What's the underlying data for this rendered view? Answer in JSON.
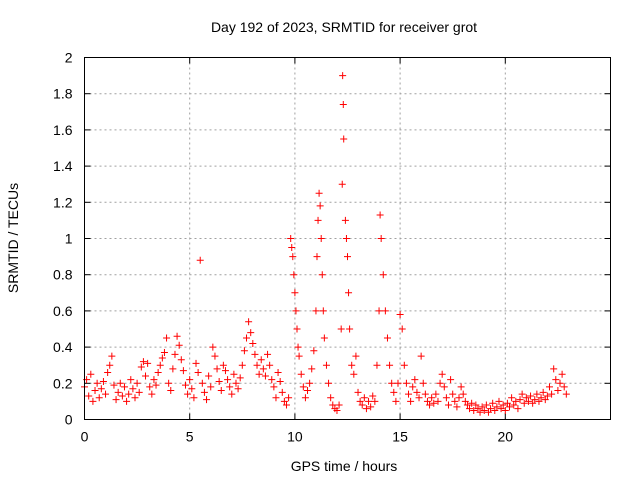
{
  "chart_data": {
    "type": "scatter",
    "title": "Day 192 of 2023, SRMTID for receiver grot",
    "xlabel": "GPS time / hours",
    "ylabel": "SRMTID / TECUs",
    "xlim": [
      0,
      25
    ],
    "ylim": [
      0,
      2
    ],
    "xticks": [
      0,
      5,
      10,
      15,
      20
    ],
    "yticks": [
      0,
      0.2,
      0.4,
      0.6,
      0.8,
      1,
      1.2,
      1.4,
      1.6,
      1.8,
      2
    ],
    "grid": true,
    "marker": "+",
    "series": [
      {
        "name": "SRMTID",
        "color": "#ff0000",
        "points": [
          [
            0.0,
            0.18
          ],
          [
            0.1,
            0.22
          ],
          [
            0.2,
            0.13
          ],
          [
            0.3,
            0.25
          ],
          [
            0.4,
            0.1
          ],
          [
            0.5,
            0.16
          ],
          [
            0.6,
            0.2
          ],
          [
            0.7,
            0.12
          ],
          [
            0.8,
            0.17
          ],
          [
            0.9,
            0.21
          ],
          [
            1.0,
            0.14
          ],
          [
            1.1,
            0.26
          ],
          [
            1.2,
            0.3
          ],
          [
            1.3,
            0.35
          ],
          [
            1.4,
            0.19
          ],
          [
            1.5,
            0.11
          ],
          [
            1.6,
            0.15
          ],
          [
            1.7,
            0.2
          ],
          [
            1.8,
            0.13
          ],
          [
            1.9,
            0.18
          ],
          [
            2.0,
            0.1
          ],
          [
            2.1,
            0.14
          ],
          [
            2.2,
            0.22
          ],
          [
            2.3,
            0.17
          ],
          [
            2.4,
            0.12
          ],
          [
            2.5,
            0.2
          ],
          [
            2.6,
            0.15
          ],
          [
            2.7,
            0.29
          ],
          [
            2.8,
            0.32
          ],
          [
            2.9,
            0.24
          ],
          [
            3.0,
            0.31
          ],
          [
            3.1,
            0.18
          ],
          [
            3.2,
            0.14
          ],
          [
            3.3,
            0.22
          ],
          [
            3.4,
            0.19
          ],
          [
            3.5,
            0.26
          ],
          [
            3.6,
            0.3
          ],
          [
            3.7,
            0.34
          ],
          [
            3.8,
            0.37
          ],
          [
            3.9,
            0.45
          ],
          [
            4.0,
            0.2
          ],
          [
            4.1,
            0.16
          ],
          [
            4.2,
            0.28
          ],
          [
            4.3,
            0.36
          ],
          [
            4.4,
            0.46
          ],
          [
            4.5,
            0.41
          ],
          [
            4.6,
            0.33
          ],
          [
            4.7,
            0.27
          ],
          [
            4.8,
            0.19
          ],
          [
            4.9,
            0.14
          ],
          [
            5.0,
            0.22
          ],
          [
            5.1,
            0.17
          ],
          [
            5.2,
            0.12
          ],
          [
            5.3,
            0.31
          ],
          [
            5.4,
            0.26
          ],
          [
            5.5,
            0.88
          ],
          [
            5.6,
            0.2
          ],
          [
            5.7,
            0.15
          ],
          [
            5.8,
            0.11
          ],
          [
            5.9,
            0.24
          ],
          [
            6.0,
            0.18
          ],
          [
            6.1,
            0.4
          ],
          [
            6.2,
            0.35
          ],
          [
            6.3,
            0.28
          ],
          [
            6.4,
            0.21
          ],
          [
            6.5,
            0.16
          ],
          [
            6.6,
            0.3
          ],
          [
            6.7,
            0.27
          ],
          [
            6.8,
            0.22
          ],
          [
            6.9,
            0.18
          ],
          [
            7.0,
            0.14
          ],
          [
            7.1,
            0.25
          ],
          [
            7.2,
            0.2
          ],
          [
            7.3,
            0.17
          ],
          [
            7.4,
            0.23
          ],
          [
            7.5,
            0.3
          ],
          [
            7.6,
            0.38
          ],
          [
            7.7,
            0.45
          ],
          [
            7.8,
            0.54
          ],
          [
            7.9,
            0.48
          ],
          [
            8.0,
            0.42
          ],
          [
            8.1,
            0.36
          ],
          [
            8.2,
            0.3
          ],
          [
            8.3,
            0.25
          ],
          [
            8.4,
            0.33
          ],
          [
            8.5,
            0.28
          ],
          [
            8.6,
            0.24
          ],
          [
            8.7,
            0.36
          ],
          [
            8.8,
            0.3
          ],
          [
            8.9,
            0.22
          ],
          [
            9.0,
            0.18
          ],
          [
            9.1,
            0.12
          ],
          [
            9.2,
            0.26
          ],
          [
            9.3,
            0.21
          ],
          [
            9.4,
            0.15
          ],
          [
            9.5,
            0.1
          ],
          [
            9.6,
            0.08
          ],
          [
            9.7,
            0.12
          ],
          [
            9.8,
            1.0
          ],
          [
            9.85,
            0.95
          ],
          [
            9.9,
            0.9
          ],
          [
            9.95,
            0.8
          ],
          [
            10.0,
            0.7
          ],
          [
            10.05,
            0.6
          ],
          [
            10.1,
            0.5
          ],
          [
            10.15,
            0.4
          ],
          [
            10.2,
            0.35
          ],
          [
            10.3,
            0.25
          ],
          [
            10.4,
            0.18
          ],
          [
            10.5,
            0.12
          ],
          [
            10.6,
            0.16
          ],
          [
            10.7,
            0.2
          ],
          [
            10.8,
            0.28
          ],
          [
            10.9,
            0.38
          ],
          [
            11.0,
            0.6
          ],
          [
            11.05,
            0.9
          ],
          [
            11.1,
            1.1
          ],
          [
            11.15,
            1.25
          ],
          [
            11.2,
            1.18
          ],
          [
            11.25,
            1.0
          ],
          [
            11.3,
            0.8
          ],
          [
            11.35,
            0.6
          ],
          [
            11.4,
            0.45
          ],
          [
            11.5,
            0.3
          ],
          [
            11.6,
            0.2
          ],
          [
            11.7,
            0.12
          ],
          [
            11.8,
            0.08
          ],
          [
            11.9,
            0.06
          ],
          [
            12.0,
            0.05
          ],
          [
            12.1,
            0.08
          ],
          [
            12.2,
            0.5
          ],
          [
            12.25,
            1.3
          ],
          [
            12.27,
            1.9
          ],
          [
            12.3,
            1.74
          ],
          [
            12.32,
            1.55
          ],
          [
            12.4,
            1.1
          ],
          [
            12.45,
            1.0
          ],
          [
            12.5,
            0.9
          ],
          [
            12.55,
            0.7
          ],
          [
            12.6,
            0.5
          ],
          [
            12.7,
            0.3
          ],
          [
            12.8,
            0.25
          ],
          [
            12.9,
            0.35
          ],
          [
            13.0,
            0.15
          ],
          [
            13.1,
            0.1
          ],
          [
            13.2,
            0.08
          ],
          [
            13.3,
            0.12
          ],
          [
            13.4,
            0.06
          ],
          [
            13.5,
            0.1
          ],
          [
            13.6,
            0.07
          ],
          [
            13.7,
            0.13
          ],
          [
            13.8,
            0.1
          ],
          [
            13.9,
            0.3
          ],
          [
            14.0,
            0.6
          ],
          [
            14.05,
            1.13
          ],
          [
            14.1,
            1.0
          ],
          [
            14.2,
            0.8
          ],
          [
            14.3,
            0.6
          ],
          [
            14.4,
            0.45
          ],
          [
            14.5,
            0.3
          ],
          [
            14.6,
            0.2
          ],
          [
            14.7,
            0.15
          ],
          [
            14.8,
            0.1
          ],
          [
            14.9,
            0.2
          ],
          [
            15.0,
            0.58
          ],
          [
            15.1,
            0.5
          ],
          [
            15.2,
            0.3
          ],
          [
            15.3,
            0.2
          ],
          [
            15.4,
            0.14
          ],
          [
            15.5,
            0.1
          ],
          [
            15.6,
            0.18
          ],
          [
            15.7,
            0.22
          ],
          [
            15.8,
            0.15
          ],
          [
            15.9,
            0.12
          ],
          [
            16.0,
            0.35
          ],
          [
            16.1,
            0.2
          ],
          [
            16.2,
            0.14
          ],
          [
            16.3,
            0.1
          ],
          [
            16.4,
            0.08
          ],
          [
            16.5,
            0.12
          ],
          [
            16.6,
            0.09
          ],
          [
            16.7,
            0.14
          ],
          [
            16.8,
            0.1
          ],
          [
            16.9,
            0.2
          ],
          [
            17.0,
            0.25
          ],
          [
            17.1,
            0.18
          ],
          [
            17.2,
            0.12
          ],
          [
            17.3,
            0.08
          ],
          [
            17.4,
            0.22
          ],
          [
            17.5,
            0.14
          ],
          [
            17.6,
            0.1
          ],
          [
            17.7,
            0.07
          ],
          [
            17.8,
            0.12
          ],
          [
            17.9,
            0.18
          ],
          [
            18.0,
            0.14
          ],
          [
            18.1,
            0.1
          ],
          [
            18.2,
            0.08
          ],
          [
            18.3,
            0.06
          ],
          [
            18.4,
            0.09
          ],
          [
            18.5,
            0.05
          ],
          [
            18.6,
            0.08
          ],
          [
            18.7,
            0.06
          ],
          [
            18.8,
            0.04
          ],
          [
            18.9,
            0.07
          ],
          [
            19.0,
            0.05
          ],
          [
            19.1,
            0.08
          ],
          [
            19.2,
            0.04
          ],
          [
            19.3,
            0.06
          ],
          [
            19.4,
            0.09
          ],
          [
            19.5,
            0.05
          ],
          [
            19.6,
            0.07
          ],
          [
            19.7,
            0.1
          ],
          [
            19.8,
            0.06
          ],
          [
            19.9,
            0.08
          ],
          [
            20.0,
            0.05
          ],
          [
            20.1,
            0.09
          ],
          [
            20.2,
            0.07
          ],
          [
            20.3,
            0.12
          ],
          [
            20.4,
            0.08
          ],
          [
            20.5,
            0.1
          ],
          [
            20.6,
            0.06
          ],
          [
            20.7,
            0.11
          ],
          [
            20.8,
            0.14
          ],
          [
            20.9,
            0.09
          ],
          [
            21.0,
            0.12
          ],
          [
            21.1,
            0.1
          ],
          [
            21.2,
            0.13
          ],
          [
            21.3,
            0.09
          ],
          [
            21.4,
            0.11
          ],
          [
            21.5,
            0.14
          ],
          [
            21.6,
            0.1
          ],
          [
            21.7,
            0.12
          ],
          [
            21.8,
            0.15
          ],
          [
            21.9,
            0.11
          ],
          [
            22.0,
            0.13
          ],
          [
            22.1,
            0.18
          ],
          [
            22.2,
            0.14
          ],
          [
            22.3,
            0.28
          ],
          [
            22.4,
            0.22
          ],
          [
            22.5,
            0.16
          ],
          [
            22.6,
            0.2
          ],
          [
            22.7,
            0.25
          ],
          [
            22.8,
            0.18
          ],
          [
            22.9,
            0.14
          ]
        ]
      }
    ]
  }
}
